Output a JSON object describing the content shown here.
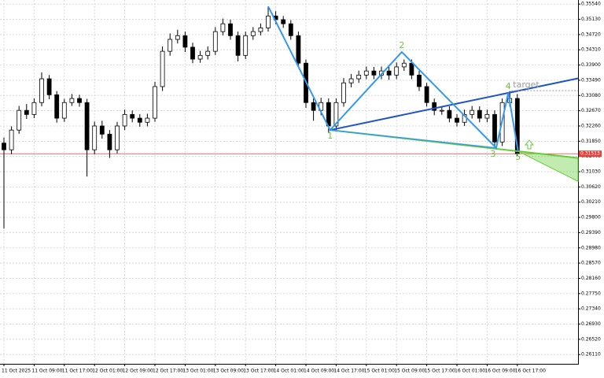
{
  "chart_data": {
    "type": "candlestick",
    "open": [
      0.318,
      0.3162,
      0.3215,
      0.3268,
      0.3257,
      0.3289,
      0.3353,
      0.331,
      0.3247,
      0.3289,
      0.33,
      0.3289,
      0.3162,
      0.3226,
      0.3204,
      0.3162,
      0.3226,
      0.3257,
      0.3247,
      0.3236,
      0.3247,
      0.3332,
      0.3427,
      0.3459,
      0.3469,
      0.3438,
      0.3406,
      0.3416,
      0.3427,
      0.348,
      0.3501,
      0.3469,
      0.3416,
      0.3469,
      0.348,
      0.349,
      0.3522,
      0.3512,
      0.3501,
      0.3469,
      0.3395,
      0.3289,
      0.3268,
      0.3289,
      0.3226,
      0.3289,
      0.3342,
      0.3353,
      0.3363,
      0.3374,
      0.3363,
      0.3374,
      0.3363,
      0.3385,
      0.3395,
      0.3363,
      0.3332,
      0.3289,
      0.3268,
      0.3268,
      0.3247,
      0.3236,
      0.3257,
      0.3268,
      0.3247,
      0.3257,
      0.3183,
      0.3289,
      0.33
    ],
    "high": [
      0.3195,
      0.3225,
      0.328,
      0.3285,
      0.33,
      0.337,
      0.3363,
      0.332,
      0.3299,
      0.3312,
      0.331,
      0.3299,
      0.3238,
      0.324,
      0.3215,
      0.3237,
      0.327,
      0.3268,
      0.3258,
      0.3259,
      0.3345,
      0.344,
      0.3475,
      0.3485,
      0.348,
      0.345,
      0.3428,
      0.344,
      0.3492,
      0.3515,
      0.3512,
      0.348,
      0.348,
      0.3492,
      0.3502,
      0.3548,
      0.3535,
      0.3522,
      0.3511,
      0.348,
      0.3405,
      0.33,
      0.3302,
      0.33,
      0.33,
      0.3355,
      0.3366,
      0.3375,
      0.3386,
      0.3385,
      0.3386,
      0.3385,
      0.3397,
      0.3405,
      0.3405,
      0.3374,
      0.3342,
      0.33,
      0.328,
      0.3279,
      0.3258,
      0.327,
      0.328,
      0.3279,
      0.327,
      0.3268,
      0.33,
      0.332,
      0.3312
    ],
    "low": [
      0.295,
      0.315,
      0.3205,
      0.3245,
      0.3247,
      0.3279,
      0.3298,
      0.3235,
      0.3237,
      0.328,
      0.3278,
      0.309,
      0.315,
      0.3192,
      0.314,
      0.3152,
      0.3215,
      0.3236,
      0.3224,
      0.3225,
      0.3237,
      0.332,
      0.3415,
      0.3448,
      0.3425,
      0.3395,
      0.3396,
      0.3405,
      0.3417,
      0.347,
      0.3458,
      0.34,
      0.3406,
      0.3458,
      0.347,
      0.348,
      0.35,
      0.349,
      0.3458,
      0.3383,
      0.3275,
      0.324,
      0.3255,
      0.3208,
      0.3215,
      0.3278,
      0.333,
      0.3342,
      0.3352,
      0.3352,
      0.3352,
      0.335,
      0.3352,
      0.3374,
      0.3352,
      0.332,
      0.3278,
      0.3255,
      0.3256,
      0.3236,
      0.3225,
      0.3226,
      0.3246,
      0.3236,
      0.3236,
      0.3167,
      0.3172,
      0.3278,
      0.3145
    ],
    "close": [
      0.3162,
      0.3215,
      0.3268,
      0.3257,
      0.3289,
      0.3353,
      0.331,
      0.3247,
      0.3289,
      0.33,
      0.3289,
      0.3162,
      0.3226,
      0.3204,
      0.3162,
      0.3226,
      0.3257,
      0.3247,
      0.3236,
      0.3247,
      0.3332,
      0.3427,
      0.3459,
      0.3469,
      0.3438,
      0.3406,
      0.3416,
      0.3427,
      0.348,
      0.3501,
      0.3469,
      0.3416,
      0.3469,
      0.348,
      0.349,
      0.3522,
      0.3512,
      0.3501,
      0.3469,
      0.3395,
      0.3289,
      0.3268,
      0.3289,
      0.3226,
      0.3289,
      0.3342,
      0.3353,
      0.3363,
      0.3374,
      0.3363,
      0.3374,
      0.3363,
      0.3385,
      0.3395,
      0.3363,
      0.3332,
      0.3289,
      0.3268,
      0.3268,
      0.3247,
      0.3236,
      0.3257,
      0.3268,
      0.3247,
      0.3257,
      0.3183,
      0.3289,
      0.33,
      0.31513
    ],
    "ylim": [
      0.2586,
      0.3565
    ],
    "yticks": [
      {
        "value": 0.3554,
        "label": "0.35540"
      },
      {
        "value": 0.3513,
        "label": "0.35130"
      },
      {
        "value": 0.3472,
        "label": "0.34720"
      },
      {
        "value": 0.3431,
        "label": "0.34310"
      },
      {
        "value": 0.339,
        "label": "0.33900"
      },
      {
        "value": 0.3349,
        "label": "0.33490"
      },
      {
        "value": 0.3308,
        "label": "0.33080"
      },
      {
        "value": 0.3267,
        "label": "0.32670"
      },
      {
        "value": 0.3226,
        "label": "0.32260"
      },
      {
        "value": 0.3185,
        "label": "0.31850"
      },
      {
        "value": 0.3144,
        "label": "0.31440"
      },
      {
        "value": 0.3103,
        "label": "0.31030"
      },
      {
        "value": 0.3062,
        "label": "0.30620"
      },
      {
        "value": 0.3021,
        "label": "0.30210"
      },
      {
        "value": 0.298,
        "label": "0.29800"
      },
      {
        "value": 0.2939,
        "label": "0.29390"
      },
      {
        "value": 0.2898,
        "label": "0.28980"
      },
      {
        "value": 0.2857,
        "label": "0.28570"
      },
      {
        "value": 0.2816,
        "label": "0.28160"
      },
      {
        "value": 0.2775,
        "label": "0.27750"
      },
      {
        "value": 0.2734,
        "label": "0.27340"
      },
      {
        "value": 0.2693,
        "label": "0.26930"
      },
      {
        "value": 0.2652,
        "label": "0.26520"
      },
      {
        "value": 0.2611,
        "label": "0.26110"
      }
    ],
    "xticks": [
      {
        "value": 0,
        "label": "11 Oct 2025"
      },
      {
        "value": 4,
        "label": "11 Oct 09:00"
      },
      {
        "value": 8,
        "label": "11 Oct 17:00"
      },
      {
        "value": 12,
        "label": "12 Oct 01:00"
      },
      {
        "value": 16,
        "label": "12 Oct 09:00"
      },
      {
        "value": 20,
        "label": "12 Oct 17:00"
      },
      {
        "value": 24,
        "label": "13 Oct 01:00"
      },
      {
        "value": 28,
        "label": "13 Oct 09:00"
      },
      {
        "value": 32,
        "label": "13 Oct 17:00"
      },
      {
        "value": 36,
        "label": "14 Oct 01:00"
      },
      {
        "value": 40,
        "label": "14 Oct 09:00"
      },
      {
        "value": 44,
        "label": "14 Oct 17:00"
      },
      {
        "value": 48,
        "label": "15 Oct 01:00"
      },
      {
        "value": 52,
        "label": "15 Oct 09:00"
      },
      {
        "value": 56,
        "label": "15 Oct 17:00"
      },
      {
        "value": 60,
        "label": "16 Oct 01:00"
      },
      {
        "value": 64,
        "label": "16 Oct 09:00"
      },
      {
        "value": 68,
        "label": "16 Oct 17:00"
      }
    ],
    "current_price": {
      "value": 0.31513,
      "label": "0.31513",
      "color": "#e8413c"
    },
    "pattern": {
      "start": {
        "i": 35,
        "price": 0.3548
      },
      "points": [
        {
          "label": "1",
          "i": 43.2,
          "price": 0.3215
        },
        {
          "label": "2",
          "i": 52.7,
          "price": 0.3425
        },
        {
          "label": "3",
          "i": 65.2,
          "price": 0.3167
        },
        {
          "label": "4",
          "i": 66.8,
          "price": 0.3315
        },
        {
          "label": "5",
          "i": 68.1,
          "price": 0.3158
        }
      ],
      "target": {
        "label": "target",
        "price": 0.3321
      },
      "zone_low_end": 0.3077,
      "zigzag_color": "#3399ee",
      "trend_color": "#1f55c8",
      "support_color": "#66cc3a"
    }
  }
}
